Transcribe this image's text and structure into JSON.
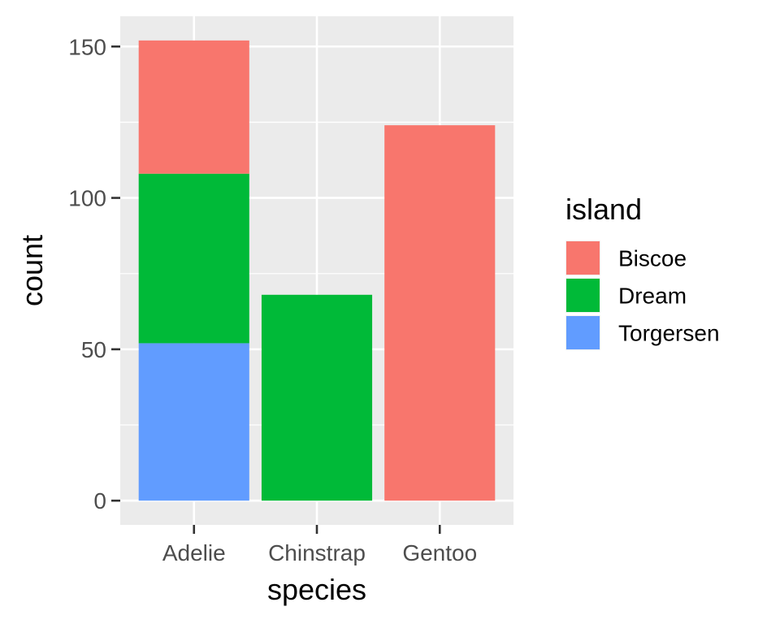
{
  "chart_data": {
    "type": "bar",
    "stacked": true,
    "xlabel": "species",
    "ylabel": "count",
    "categories": [
      "Adelie",
      "Chinstrap",
      "Gentoo"
    ],
    "series": [
      {
        "name": "Biscoe",
        "color": "#F8766D",
        "values": [
          44,
          0,
          124
        ]
      },
      {
        "name": "Dream",
        "color": "#00BA38",
        "values": [
          56,
          68,
          0
        ]
      },
      {
        "name": "Torgersen",
        "color": "#619CFF",
        "values": [
          52,
          0,
          0
        ]
      }
    ],
    "stack_order_top_to_bottom": [
      "Biscoe",
      "Dream",
      "Torgersen"
    ],
    "y_ticks": [
      0,
      50,
      100,
      150
    ],
    "ylim": [
      -8,
      160
    ],
    "grid": true,
    "panel_background": "#EBEBEB",
    "legend": {
      "title": "island",
      "position": "right"
    }
  }
}
